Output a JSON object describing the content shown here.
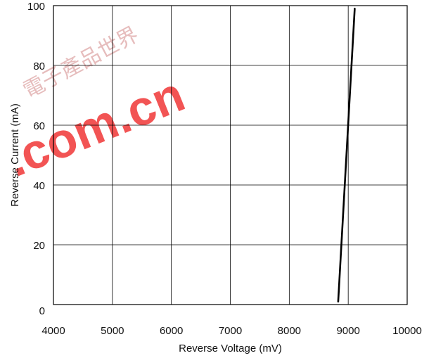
{
  "chart_data": {
    "type": "line",
    "xlabel": "Reverse Voltage (mV)",
    "ylabel": "Reverse Current (mA)",
    "xlim": [
      4000,
      10000
    ],
    "ylim": [
      0,
      100
    ],
    "x_ticks": [
      4000,
      5000,
      6000,
      7000,
      8000,
      9000,
      10000
    ],
    "y_ticks": [
      0,
      20,
      40,
      60,
      80,
      100
    ],
    "grid": true,
    "series": [
      {
        "x": [
          8830,
          9110
        ],
        "y": [
          1,
          99
        ],
        "color": "#000000"
      }
    ]
  },
  "watermark": {
    "text": ".com.cn",
    "chars": "電子產品世界",
    "color": "#ee2020"
  }
}
